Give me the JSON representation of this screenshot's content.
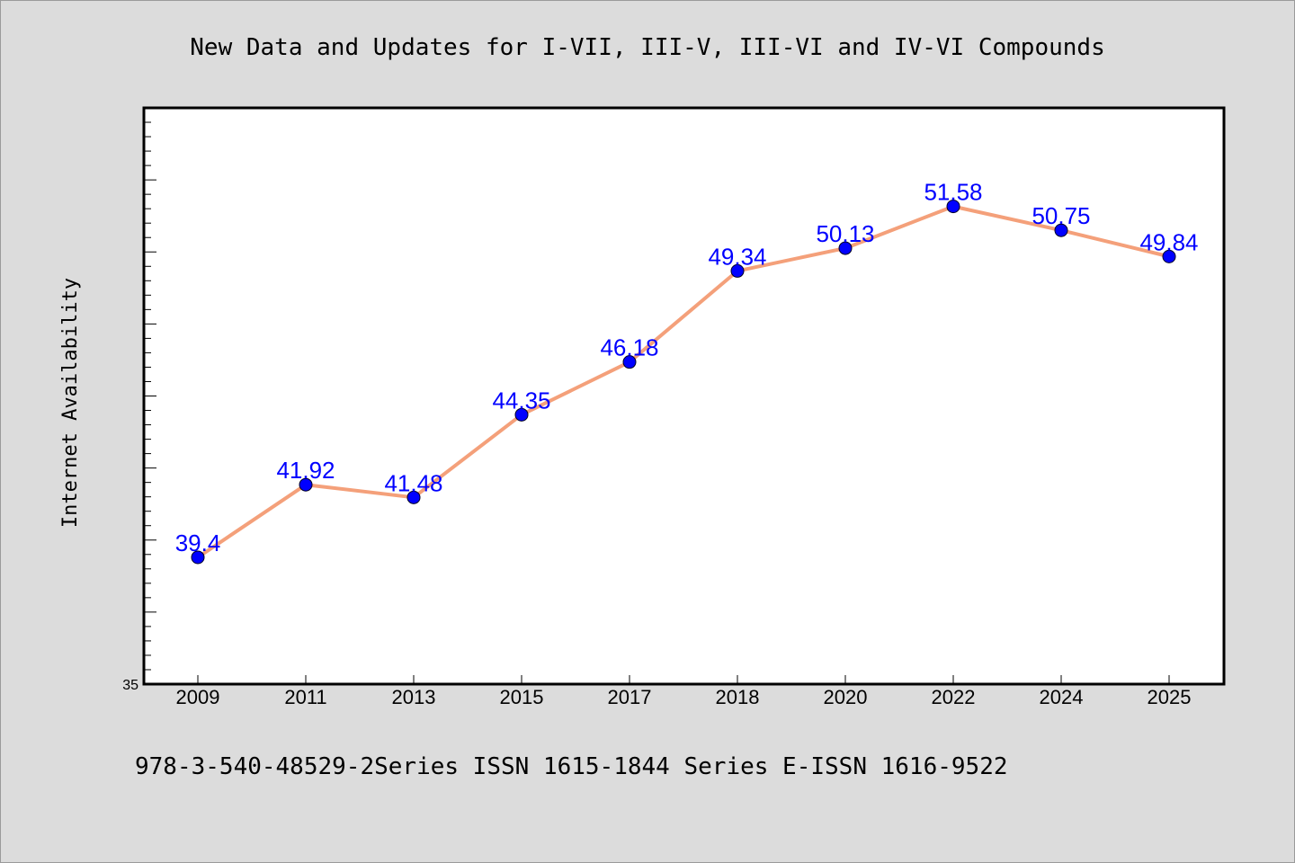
{
  "chart_data": {
    "type": "line",
    "title": "New Data and Updates for I-VII, III-V, III-VI and IV-VI Compounds",
    "ylabel": "Internet Availability",
    "xlabel": "",
    "footer": "978-3-540-48529-2Series ISSN 1615-1844 Series E-ISSN 1616-9522",
    "categories": [
      "2009",
      "2011",
      "2013",
      "2015",
      "2017",
      "2018",
      "2020",
      "2022",
      "2024",
      "2025"
    ],
    "series": [
      {
        "values": [
          39.4,
          41.92,
          41.48,
          44.35,
          46.18,
          49.34,
          50.13,
          51.58,
          50.75,
          49.84
        ],
        "labels": [
          "39.4",
          "41.92",
          "41.48",
          "44.35",
          "46.18",
          "49.34",
          "50.13",
          "51.58",
          "50.75",
          "49.84"
        ],
        "line_color": "#f4a07a",
        "marker_color": "#0000ff"
      }
    ],
    "ylim": [
      35,
      55
    ],
    "yticks_labeled": [
      "35"
    ],
    "grid": false,
    "legend": "none",
    "colors": {
      "background": "#dcdcdc",
      "plot_bg": "#ffffff",
      "label": "#0000ff"
    }
  }
}
